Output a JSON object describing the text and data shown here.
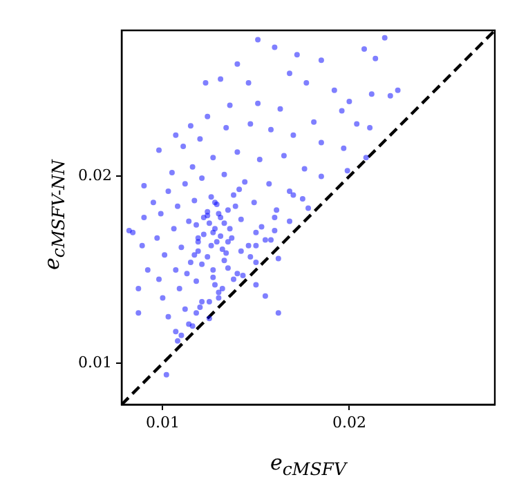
{
  "chart_data": {
    "type": "scatter",
    "xlabel": "e$_{cMSFV}$",
    "ylabel": "e$_{cMSFV-NN}$",
    "xlim": [
      0.0078,
      0.0278
    ],
    "ylim": [
      0.0078,
      0.0278
    ],
    "xticks": [
      0.01,
      0.02
    ],
    "yticks": [
      0.01,
      0.02
    ],
    "grid": false,
    "legend": false,
    "marker": "circle",
    "series": [
      {
        "color": "#0000ff",
        "x": [
          0.0151,
          0.016,
          0.0172,
          0.0208,
          0.0214,
          0.0219,
          0.0185,
          0.014,
          0.0131,
          0.0123,
          0.0146,
          0.0168,
          0.0177,
          0.0192,
          0.02,
          0.0212,
          0.0222,
          0.0226,
          0.0196,
          0.0204,
          0.0181,
          0.0163,
          0.0151,
          0.0136,
          0.0124,
          0.0115,
          0.0107,
          0.0098,
          0.0111,
          0.012,
          0.0134,
          0.0147,
          0.0158,
          0.017,
          0.0185,
          0.0197,
          0.0211,
          0.0209,
          0.009,
          0.0105,
          0.0116,
          0.0127,
          0.014,
          0.0152,
          0.0165,
          0.0176,
          0.0185,
          0.0199,
          0.0084,
          0.0095,
          0.0103,
          0.0112,
          0.0121,
          0.0133,
          0.0144,
          0.0157,
          0.0168,
          0.017,
          0.0175,
          0.0178,
          0.009,
          0.0099,
          0.0108,
          0.0117,
          0.0126,
          0.0138,
          0.0149,
          0.0161,
          0.016,
          0.0168,
          0.016,
          0.0089,
          0.0097,
          0.0106,
          0.0114,
          0.0122,
          0.013,
          0.0142,
          0.0153,
          0.015,
          0.0158,
          0.015,
          0.0155,
          0.0092,
          0.0101,
          0.011,
          0.0119,
          0.0127,
          0.0135,
          0.0146,
          0.0142,
          0.0147,
          0.015,
          0.0162,
          0.0087,
          0.0098,
          0.0107,
          0.0115,
          0.0124,
          0.0133,
          0.0135,
          0.014,
          0.0138,
          0.015,
          0.0143,
          0.0132,
          0.01,
          0.0109,
          0.0118,
          0.0127,
          0.0128,
          0.013,
          0.0155,
          0.0125,
          0.0162,
          0.0103,
          0.0112,
          0.0121,
          0.013,
          0.012,
          0.0118,
          0.0107,
          0.0116,
          0.0125,
          0.0114,
          0.011,
          0.0108,
          0.0102,
          0.0082,
          0.0087,
          0.0128,
          0.0131,
          0.0125,
          0.0129,
          0.0119,
          0.0135,
          0.0118,
          0.0122,
          0.0126,
          0.0131,
          0.0136,
          0.0139,
          0.0124,
          0.0128,
          0.0133,
          0.0117,
          0.0121,
          0.0127,
          0.0132,
          0.0137,
          0.0113,
          0.0119,
          0.0124,
          0.0129,
          0.0134,
          0.0141
        ],
        "values": [
          0.0273,
          0.0269,
          0.0265,
          0.0268,
          0.0263,
          0.0274,
          0.0262,
          0.026,
          0.0252,
          0.025,
          0.025,
          0.0255,
          0.025,
          0.0246,
          0.024,
          0.0244,
          0.0243,
          0.0246,
          0.0235,
          0.0228,
          0.0229,
          0.0236,
          0.0239,
          0.0238,
          0.0232,
          0.0227,
          0.0222,
          0.0214,
          0.0216,
          0.022,
          0.0226,
          0.0228,
          0.0225,
          0.0222,
          0.0218,
          0.0215,
          0.0226,
          0.021,
          0.0195,
          0.0202,
          0.0205,
          0.021,
          0.0213,
          0.0209,
          0.0211,
          0.0204,
          0.02,
          0.0203,
          0.017,
          0.0186,
          0.0192,
          0.0196,
          0.0199,
          0.0201,
          0.0197,
          0.0196,
          0.0192,
          0.019,
          0.0188,
          0.0183,
          0.0178,
          0.018,
          0.0184,
          0.0187,
          0.0189,
          0.019,
          0.0186,
          0.0182,
          0.0178,
          0.0176,
          0.0171,
          0.0163,
          0.0167,
          0.0172,
          0.0176,
          0.0178,
          0.018,
          0.0177,
          0.0173,
          0.017,
          0.0166,
          0.0163,
          0.0166,
          0.015,
          0.0158,
          0.0162,
          0.0167,
          0.017,
          0.0165,
          0.0163,
          0.016,
          0.0157,
          0.0154,
          0.0156,
          0.014,
          0.0145,
          0.015,
          0.0154,
          0.0157,
          0.0155,
          0.0151,
          0.0148,
          0.0145,
          0.0142,
          0.0147,
          0.014,
          0.0135,
          0.014,
          0.0144,
          0.0146,
          0.0142,
          0.0138,
          0.0136,
          0.0133,
          0.0127,
          0.0125,
          0.0129,
          0.0133,
          0.0135,
          0.013,
          0.0127,
          0.0117,
          0.012,
          0.0124,
          0.0121,
          0.0115,
          0.0112,
          0.0094,
          0.0171,
          0.0127,
          0.0172,
          0.0168,
          0.0175,
          0.0165,
          0.016,
          0.0182,
          0.0174,
          0.0169,
          0.0163,
          0.0178,
          0.0172,
          0.0184,
          0.0181,
          0.0186,
          0.0175,
          0.0158,
          0.0153,
          0.015,
          0.0161,
          0.0167,
          0.0148,
          0.0165,
          0.0179,
          0.0185,
          0.0159,
          0.0193
        ]
      },
      {
        "type": "line",
        "color": "#000000",
        "line_style": "dashed",
        "marker": "none",
        "x": [
          0.0078,
          0.0278
        ],
        "values": [
          0.0078,
          0.0278
        ]
      }
    ]
  }
}
